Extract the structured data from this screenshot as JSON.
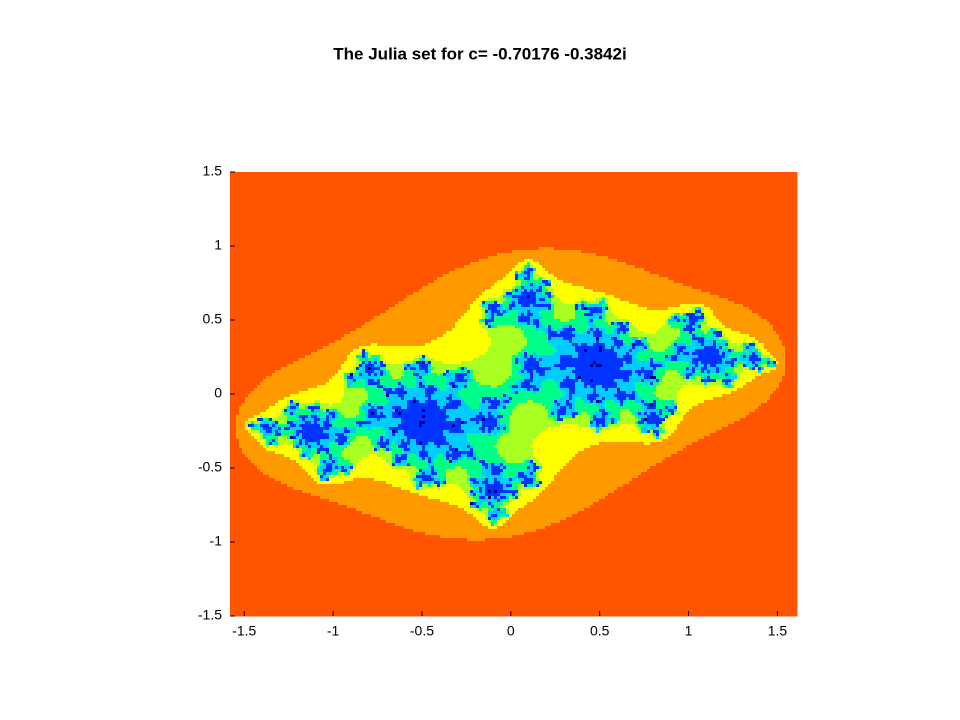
{
  "chart_data": {
    "type": "julia",
    "title": "The Julia set for c= -0.70176 -0.3842i",
    "c": [
      -0.70176,
      -0.3842
    ],
    "xlim": [
      -1.58,
      1.61
    ],
    "ylim": [
      -1.5,
      1.5
    ],
    "xticks": [
      -1.5,
      -1,
      -0.5,
      0,
      0.5,
      1,
      1.5
    ],
    "yticks": [
      -1.5,
      -1,
      -0.5,
      0,
      0.5,
      1,
      1.5
    ],
    "colormap": [
      "#ff5500",
      "#ff9900",
      "#ffff00",
      "#aaff22",
      "#00ff88",
      "#00ccff",
      "#0033ff",
      "#000088"
    ]
  }
}
